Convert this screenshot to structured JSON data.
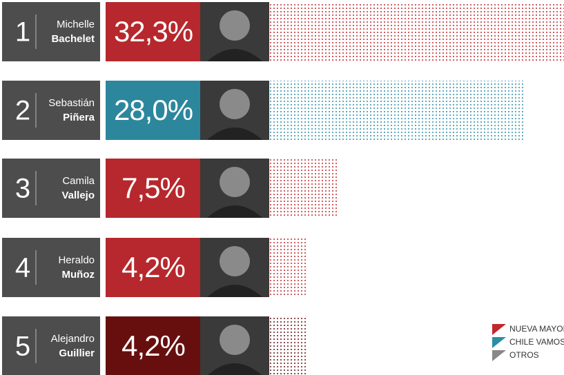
{
  "chart_data": {
    "type": "bar",
    "ranks": [
      1,
      2,
      3,
      4,
      5
    ],
    "first_names": [
      "Michelle",
      "Sebastián",
      "Camila",
      "Heraldo",
      "Alejandro"
    ],
    "last_names": [
      "Bachelet",
      "Piñera",
      "Vallejo",
      "Muñoz",
      "Guillier"
    ],
    "values": [
      32.3,
      28.0,
      7.5,
      4.2,
      4.2
    ],
    "value_labels": [
      "32,3%",
      "28,0%",
      "7,5%",
      "4,2%",
      "4,2%"
    ],
    "colors": [
      "#c1272d",
      "#2b8ea6",
      "#c1272d",
      "#c1272d",
      "#6b0c0c"
    ],
    "legend": [
      {
        "name": "NUEVA MAYORÍA",
        "color": "#c1272d"
      },
      {
        "name": "CHILE VAMOS Y",
        "color": "#2b8ea6"
      },
      {
        "name": "OTROS",
        "color": "#888888"
      }
    ]
  }
}
